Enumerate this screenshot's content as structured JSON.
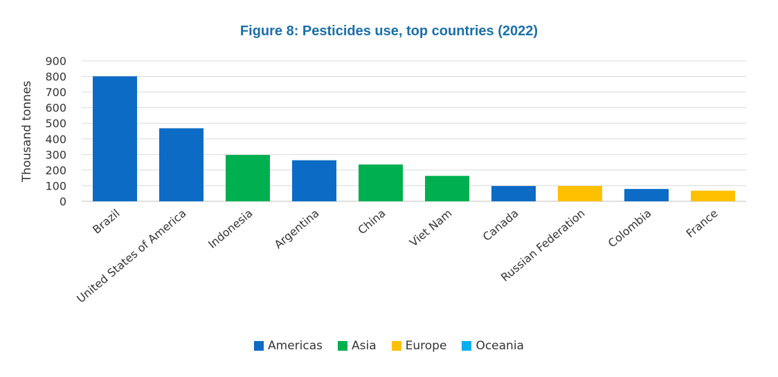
{
  "chart_data": {
    "type": "bar",
    "title": "Figure 8: Pesticides use, top countries (2022)",
    "ylabel": "Thousand tonnes",
    "xlabel": "",
    "ylim": [
      0,
      900
    ],
    "yticks": [
      0,
      100,
      200,
      300,
      400,
      500,
      600,
      700,
      800,
      900
    ],
    "grid": true,
    "legend_position": "bottom",
    "categories": [
      "Brazil",
      "United States of America",
      "Indonesia",
      "Argentina",
      "China",
      "Viet Nam",
      "Canada",
      "Russian Federation",
      "Colombia",
      "France"
    ],
    "values": [
      801,
      468,
      297,
      263,
      236,
      163,
      98,
      98,
      79,
      68
    ],
    "regions": [
      "Americas",
      "Americas",
      "Asia",
      "Americas",
      "Asia",
      "Asia",
      "Americas",
      "Europe",
      "Americas",
      "Europe"
    ],
    "legend": [
      {
        "name": "Americas",
        "color": "#0b6bc5"
      },
      {
        "name": "Asia",
        "color": "#00b050"
      },
      {
        "name": "Europe",
        "color": "#ffc000"
      },
      {
        "name": "Oceania",
        "color": "#00b0f0"
      }
    ]
  }
}
